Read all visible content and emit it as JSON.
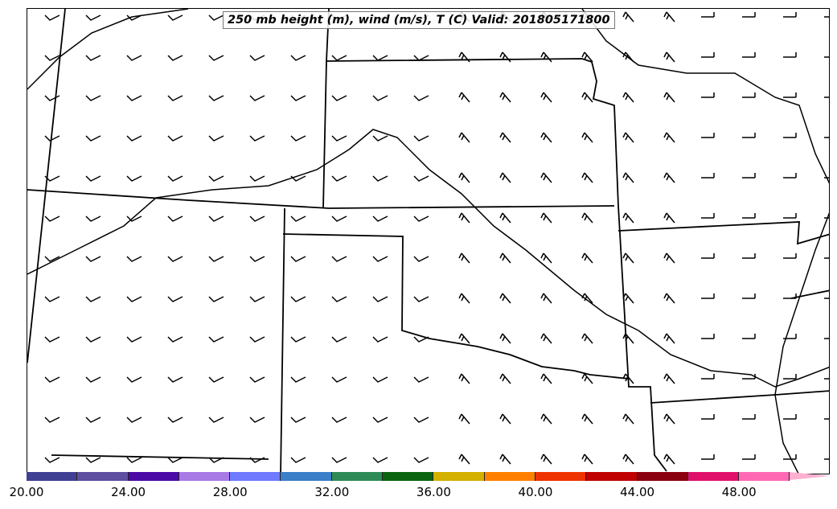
{
  "title": "250 mb height (m), wind (m/s), T (C) Valid: 201805171800",
  "colorbar": {
    "colors": [
      "#3f3f94",
      "#5e4fa0",
      "#4b0aa6",
      "#a87ae6",
      "#6f7aff",
      "#3a7fc8",
      "#2e8b57",
      "#0a6410",
      "#d4b000",
      "#ff8000",
      "#ee3300",
      "#c00000",
      "#8b0010",
      "#e0106a",
      "#ff69b4"
    ],
    "extend_color": "#ffb0d0",
    "ticks": [
      "20.00",
      "24.00",
      "28.00",
      "32.00",
      "36.00",
      "40.00",
      "44.00",
      "48.00"
    ]
  }
}
